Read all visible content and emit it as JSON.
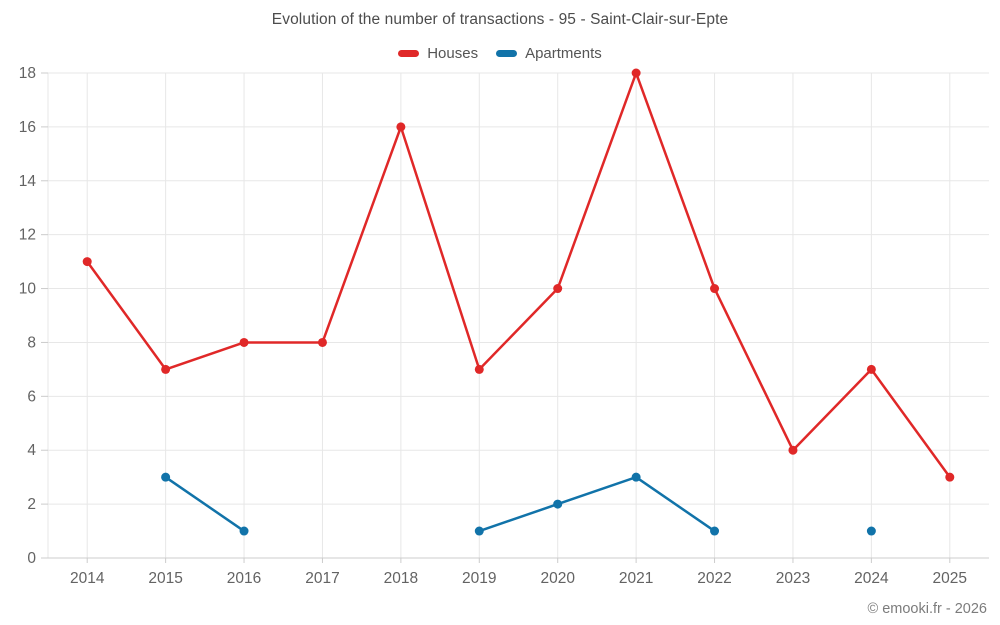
{
  "chart": {
    "title": "Evolution of the number of transactions - 95 - Saint-Clair-sur-Epte"
  },
  "legend": {
    "items": [
      {
        "label": "Houses",
        "color": "#e02828"
      },
      {
        "label": "Apartments",
        "color": "#1173a9"
      }
    ]
  },
  "footer": {
    "credit": "© emooki.fr - 2026"
  },
  "chart_data": {
    "type": "line",
    "categories": [
      "2014",
      "2015",
      "2016",
      "2017",
      "2018",
      "2019",
      "2020",
      "2021",
      "2022",
      "2023",
      "2024",
      "2025"
    ],
    "series": [
      {
        "name": "Houses",
        "color": "#e02828",
        "values": [
          11,
          7,
          8,
          8,
          16,
          7,
          10,
          18,
          10,
          4,
          7,
          3
        ]
      },
      {
        "name": "Apartments",
        "color": "#1173a9",
        "values": [
          null,
          3,
          1,
          null,
          null,
          1,
          2,
          3,
          1,
          null,
          1,
          null
        ]
      }
    ],
    "title": "Evolution of the number of transactions - 95 - Saint-Clair-sur-Epte",
    "xlabel": "",
    "ylabel": "",
    "ylim": [
      0,
      18
    ],
    "yticks": [
      0,
      2,
      4,
      6,
      8,
      10,
      12,
      14,
      16,
      18
    ],
    "grid": true,
    "legend_position": "top"
  }
}
